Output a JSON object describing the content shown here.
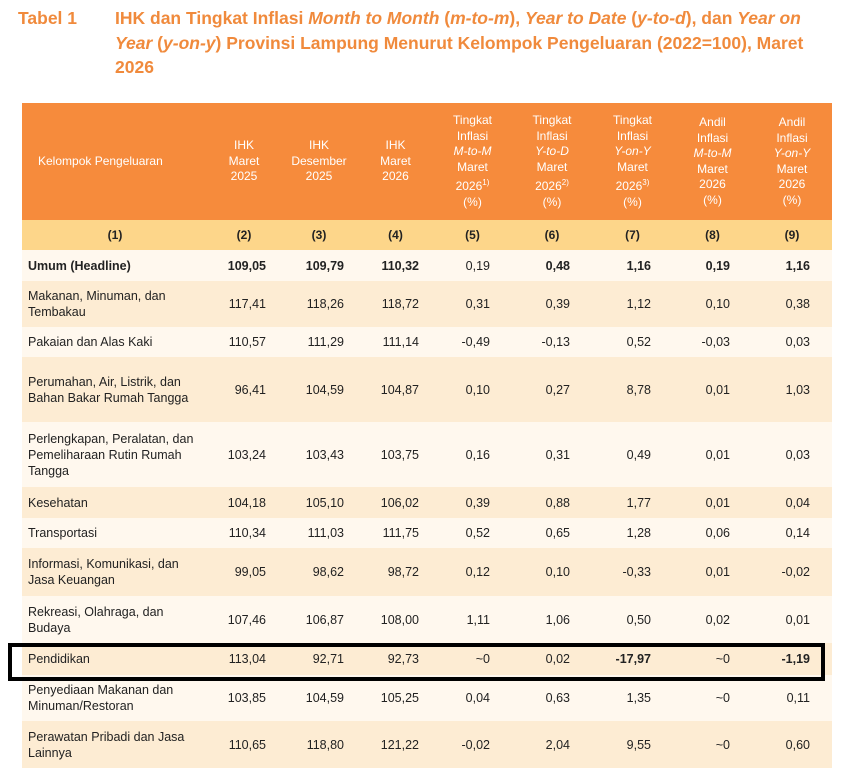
{
  "title": {
    "label": "Tabel 1",
    "parts": [
      "IHK dan Tingkat Inflasi ",
      "Month to Month",
      " (",
      "m-to-m",
      "), ",
      "Year to Date",
      " (",
      "y-to-d",
      "),  dan ",
      "Year on Year",
      " (",
      "y-on-y",
      ") Provinsi Lampung Menurut Kelompok Pengeluaran (2022=100), Maret 2026"
    ]
  },
  "colors": {
    "accent": "#f08a3c",
    "header_bg": "#f68b3c",
    "colnum_bg": "#fdd68a",
    "row_light": "#fff8ee",
    "row_dark": "#fdecd3"
  },
  "headers": [
    {
      "lines": [
        "Kelompok Pengeluaran"
      ]
    },
    {
      "lines": [
        "IHK",
        "Maret",
        "2025"
      ]
    },
    {
      "lines": [
        "IHK",
        "Desember",
        "2025"
      ]
    },
    {
      "lines": [
        "IHK",
        "Maret",
        "2026"
      ]
    },
    {
      "lines": [
        "Tingkat",
        "Inflasi",
        "M-to-M",
        "Maret",
        "2026",
        "(%)"
      ],
      "sup": "1)"
    },
    {
      "lines": [
        "Tingkat",
        "Inflasi",
        "Y-to-D",
        "Maret",
        "2026",
        "(%)"
      ],
      "sup": "2)"
    },
    {
      "lines": [
        "Tingkat",
        "Inflasi",
        "Y-on-Y",
        "Maret",
        "2026",
        "(%)"
      ],
      "sup": "3)"
    },
    {
      "lines": [
        "Andil",
        "Inflasi",
        "M-to-M",
        "Maret",
        "2026",
        "(%)"
      ]
    },
    {
      "lines": [
        "Andil",
        "Inflasi",
        "Y-on-Y",
        "Maret",
        "2026",
        "(%)"
      ]
    }
  ],
  "column_numbers": [
    "(1)",
    "(2)",
    "(3)",
    "(4)",
    "(5)",
    "(6)",
    "(7)",
    "(8)",
    "(9)"
  ],
  "rows": [
    {
      "name": "Umum (Headline)",
      "values": [
        "109,05",
        "109,79",
        "110,32",
        "0,19",
        "0,48",
        "1,16",
        "0,19",
        "1,16"
      ]
    },
    {
      "name": "Makanan, Minuman, dan Tembakau",
      "values": [
        "117,41",
        "118,26",
        "118,72",
        "0,31",
        "0,39",
        "1,12",
        "0,10",
        "0,38"
      ]
    },
    {
      "name": "Pakaian dan Alas Kaki",
      "values": [
        "110,57",
        "111,29",
        "111,14",
        "-0,49",
        "-0,13",
        "0,52",
        "-0,03",
        "0,03"
      ]
    },
    {
      "name": "Perumahan, Air, Listrik, dan Bahan Bakar Rumah Tangga",
      "values": [
        "96,41",
        "104,59",
        "104,87",
        "0,10",
        "0,27",
        "8,78",
        "0,01",
        "1,03"
      ]
    },
    {
      "name": "Perlengkapan, Peralatan, dan Pemeliharaan Rutin Rumah Tangga",
      "values": [
        "103,24",
        "103,43",
        "103,75",
        "0,16",
        "0,31",
        "0,49",
        "0,01",
        "0,03"
      ]
    },
    {
      "name": "Kesehatan",
      "values": [
        "104,18",
        "105,10",
        "106,02",
        "0,39",
        "0,88",
        "1,77",
        "0,01",
        "0,04"
      ]
    },
    {
      "name": "Transportasi",
      "values": [
        "110,34",
        "111,03",
        "111,75",
        "0,52",
        "0,65",
        "1,28",
        "0,06",
        "0,14"
      ]
    },
    {
      "name": "Informasi, Komunikasi, dan Jasa Keuangan",
      "values": [
        "99,05",
        "98,62",
        "98,72",
        "0,12",
        "0,10",
        "-0,33",
        "0,01",
        "-0,02"
      ]
    },
    {
      "name": "Rekreasi, Olahraga, dan Budaya",
      "values": [
        "107,46",
        "106,87",
        "108,00",
        "1,11",
        "1,06",
        "0,50",
        "0,02",
        "0,01"
      ]
    },
    {
      "name": "Pendidikan",
      "values": [
        "113,04",
        "92,71",
        "92,73",
        "~0",
        "0,02",
        "-17,97",
        "~0",
        "-1,19"
      ],
      "highlighted": true
    },
    {
      "name": "Penyediaan Makanan dan Minuman/Restoran",
      "values": [
        "103,85",
        "104,59",
        "105,25",
        "0,04",
        "0,63",
        "1,35",
        "~0",
        "0,11"
      ]
    },
    {
      "name": "Perawatan Pribadi dan Jasa Lainnya",
      "values": [
        "110,65",
        "118,80",
        "121,22",
        "-0,02",
        "2,04",
        "9,55",
        "~0",
        "0,60"
      ]
    }
  ]
}
